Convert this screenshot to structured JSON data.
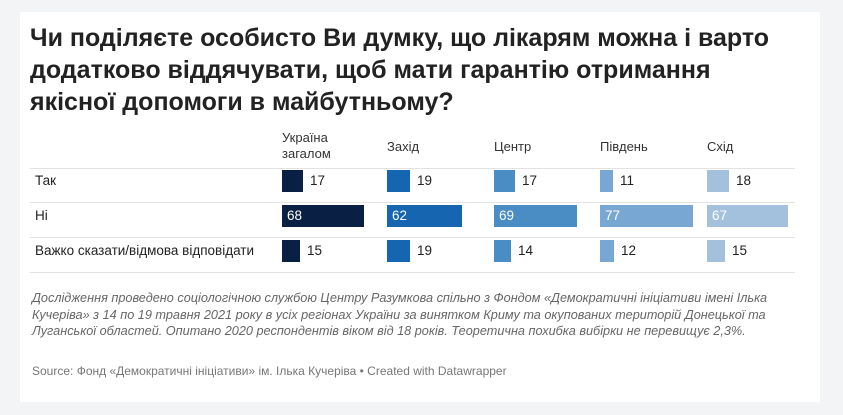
{
  "title": "Чи поділяєте особисто Ви думку, що лікарям можна і варто додатково віддячувати, щоб мати гарантію отримання якісної допомоги в майбутньому?",
  "note": "Дослідження проведено соціологічною службою Центру Разумкова спільно з Фондом «Демократичні ініціативи імені Ілька Кучеріва» з 14 по 19 травня 2021 року в усіх регіонах України за винятком Криму та окупованих територій Донецької та Луганської областей. Опитано 2020 респондентів віком від 18 років. Теоретична похибка вибірки не перевищує 2,3%.",
  "source": "Source: Фонд «Демократичні ініціативи» ім. Ілька Кучеріва • Created with Datawrapper",
  "chart_data": {
    "type": "bar",
    "title": "Чи поділяєте особисто Ви думку, що лікарям можна і варто додатково віддячувати, щоб мати гарантію отримання якісної допомоги в майбутньому?",
    "categories": [
      "Так",
      "Ні",
      "Важко сказати/відмова відповідати"
    ],
    "series": [
      {
        "name": "Україна загалом",
        "color": "#0a1f44",
        "values": [
          17,
          68,
          15
        ]
      },
      {
        "name": "Захід",
        "color": "#1565b0",
        "values": [
          19,
          62,
          19
        ]
      },
      {
        "name": "Центр",
        "color": "#4a8cc4",
        "values": [
          17,
          69,
          14
        ]
      },
      {
        "name": "Південь",
        "color": "#77a7d2",
        "values": [
          11,
          77,
          12
        ]
      },
      {
        "name": "Схід",
        "color": "#a3c1dc",
        "values": [
          18,
          67,
          15
        ]
      }
    ]
  }
}
